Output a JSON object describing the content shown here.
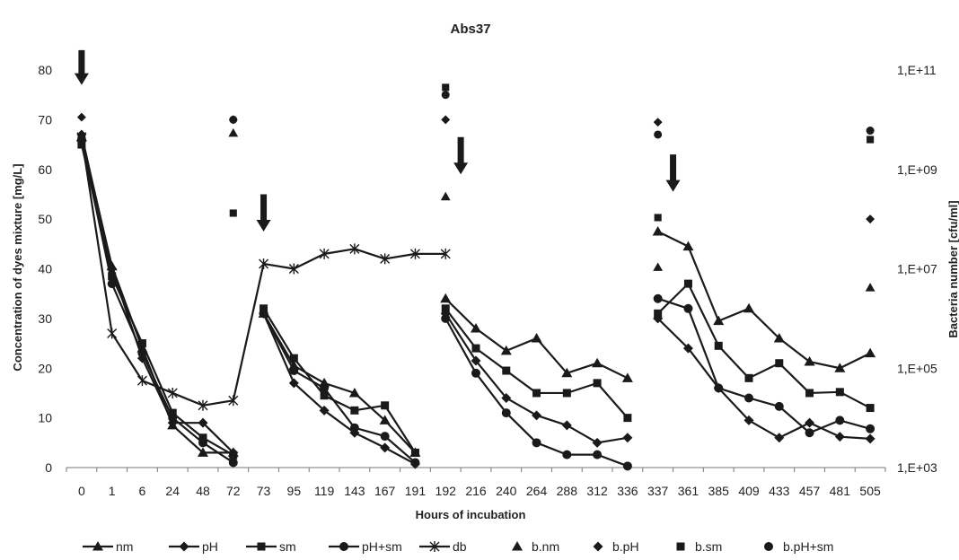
{
  "chart_data": {
    "type": "line",
    "title": "Abs37",
    "xlabel": "Hours of  incubation",
    "ylabel": "Concentration of dyes mixture [mg/L]",
    "y2label": "Bacteria number [cfu/ml]",
    "categories": [
      "0",
      "1",
      "6",
      "24",
      "48",
      "72",
      "73",
      "95",
      "119",
      "143",
      "167",
      "191",
      "192",
      "216",
      "240",
      "264",
      "288",
      "312",
      "336",
      "337",
      "361",
      "385",
      "409",
      "433",
      "457",
      "481",
      "505"
    ],
    "ylim": [
      0,
      80
    ],
    "yticks": [
      "0",
      "10",
      "20",
      "30",
      "40",
      "50",
      "60",
      "70",
      "80"
    ],
    "y2ticks": [
      "1,E+03",
      "1,E+05",
      "1,E+07",
      "1,E+09",
      "1,E+11"
    ],
    "y2lim_log10": [
      3,
      11
    ],
    "y2_scale": "log",
    "grid": false,
    "legend_position": "bottom",
    "series": [
      {
        "name": "nm",
        "marker": "triangle",
        "segments": [
          [
            [
              0,
              66.5
            ],
            [
              1,
              40.5
            ],
            [
              2,
              24
            ],
            [
              3,
              8.5
            ],
            [
              4,
              3
            ],
            [
              5,
              3
            ]
          ],
          [
            [
              6,
              31
            ],
            [
              7,
              20.5
            ],
            [
              8,
              17
            ],
            [
              9,
              15
            ],
            [
              10,
              9.5
            ],
            [
              11,
              3
            ]
          ],
          [
            [
              12,
              34
            ],
            [
              13,
              28
            ],
            [
              14,
              23.5
            ],
            [
              15,
              26
            ],
            [
              16,
              19
            ],
            [
              17,
              21
            ],
            [
              18,
              18
            ]
          ],
          [
            [
              19,
              47.5
            ],
            [
              20,
              44.5
            ],
            [
              21,
              29.5
            ],
            [
              22,
              32
            ],
            [
              23,
              26
            ],
            [
              24,
              21.3
            ],
            [
              25,
              20
            ],
            [
              26,
              23
            ]
          ]
        ]
      },
      {
        "name": "pH",
        "marker": "diamond",
        "segments": [
          [
            [
              0,
              67
            ],
            [
              1,
              40
            ],
            [
              2,
              22
            ],
            [
              3,
              9
            ],
            [
              4,
              9
            ],
            [
              5,
              3
            ]
          ],
          [
            [
              6,
              31
            ],
            [
              7,
              17
            ],
            [
              8,
              11.5
            ],
            [
              9,
              7
            ],
            [
              10,
              4
            ],
            [
              11,
              0.7
            ]
          ],
          [
            [
              12,
              31
            ],
            [
              13,
              21.5
            ],
            [
              14,
              14
            ],
            [
              15,
              10.5
            ],
            [
              16,
              8.5
            ],
            [
              17,
              5
            ],
            [
              18,
              6
            ]
          ],
          [
            [
              19,
              30
            ],
            [
              20,
              24
            ],
            [
              21,
              16
            ],
            [
              22,
              9.5
            ],
            [
              23,
              6
            ],
            [
              24,
              9
            ],
            [
              25,
              6.2
            ],
            [
              26,
              5.8
            ]
          ]
        ]
      },
      {
        "name": "sm",
        "marker": "square",
        "segments": [
          [
            [
              0,
              65
            ],
            [
              1,
              38.5
            ],
            [
              2,
              25
            ],
            [
              3,
              11
            ],
            [
              4,
              6
            ],
            [
              5,
              2.5
            ]
          ],
          [
            [
              6,
              32
            ],
            [
              7,
              22
            ],
            [
              8,
              14.5
            ],
            [
              9,
              11.5
            ],
            [
              10,
              12.5
            ],
            [
              11,
              3
            ]
          ],
          [
            [
              12,
              32
            ],
            [
              13,
              24
            ],
            [
              14,
              19.5
            ],
            [
              15,
              15
            ],
            [
              16,
              15
            ],
            [
              17,
              17
            ],
            [
              18,
              10
            ]
          ],
          [
            [
              19,
              31
            ],
            [
              20,
              37
            ],
            [
              21,
              24.5
            ],
            [
              22,
              18
            ],
            [
              23,
              21
            ],
            [
              24,
              15
            ],
            [
              25,
              15.2
            ],
            [
              26,
              12
            ]
          ]
        ]
      },
      {
        "name": "pH+sm",
        "marker": "circle",
        "segments": [
          [
            [
              0,
              66
            ],
            [
              1,
              37
            ],
            [
              2,
              23
            ],
            [
              3,
              10
            ],
            [
              4,
              5
            ],
            [
              5,
              1
            ]
          ],
          [
            [
              6,
              31
            ],
            [
              7,
              19.5
            ],
            [
              8,
              16
            ],
            [
              9,
              8
            ],
            [
              10,
              6.3
            ],
            [
              11,
              1
            ]
          ],
          [
            [
              12,
              30
            ],
            [
              13,
              19
            ],
            [
              14,
              11
            ],
            [
              15,
              5
            ],
            [
              16,
              2.6
            ],
            [
              17,
              2.6
            ],
            [
              18,
              0.3
            ]
          ],
          [
            [
              19,
              34
            ],
            [
              20,
              32
            ],
            [
              21,
              16
            ],
            [
              22,
              14
            ],
            [
              23,
              12.3
            ],
            [
              24,
              7
            ],
            [
              25,
              9.5
            ],
            [
              26,
              7.8
            ]
          ]
        ]
      },
      {
        "name": "db",
        "marker": "star",
        "segments": [
          [
            [
              0,
              66.5
            ],
            [
              1,
              27
            ],
            [
              2,
              17.5
            ],
            [
              3,
              15
            ],
            [
              4,
              12.5
            ],
            [
              5,
              13.5
            ],
            [
              6,
              41
            ],
            [
              7,
              40
            ],
            [
              8,
              43
            ],
            [
              9,
              44
            ],
            [
              10,
              42
            ],
            [
              11,
              43
            ],
            [
              12,
              43
            ]
          ]
        ]
      },
      {
        "name": "b.nm",
        "marker": "triangle",
        "points": [
          [
            5,
            67.3
          ],
          [
            12,
            54.5
          ],
          [
            19,
            40.3
          ],
          [
            26,
            36.2
          ]
        ]
      },
      {
        "name": "b.pH",
        "marker": "diamond",
        "points": [
          [
            0,
            70.5
          ],
          [
            5,
            70
          ],
          [
            12,
            70
          ],
          [
            19,
            69.5
          ],
          [
            26,
            50
          ]
        ]
      },
      {
        "name": "b.sm",
        "marker": "square",
        "points": [
          [
            0,
            65.5
          ],
          [
            5,
            51.2
          ],
          [
            12,
            76.5
          ],
          [
            19,
            50.3
          ],
          [
            26,
            66
          ]
        ]
      },
      {
        "name": "b.pH+sm",
        "marker": "circle",
        "points": [
          [
            0,
            66.5
          ],
          [
            5,
            70
          ],
          [
            12,
            75
          ],
          [
            19,
            67
          ],
          [
            26,
            67.8
          ]
        ]
      }
    ],
    "annotations": [
      {
        "type": "arrow-down",
        "x": 0,
        "y_top": 84,
        "y_tip": 77
      },
      {
        "type": "arrow-down",
        "x": 6,
        "y_top": 55,
        "y_tip": 47.5
      },
      {
        "type": "arrow-down",
        "x": 12.5,
        "y_top": 66.5,
        "y_tip": 59
      },
      {
        "type": "arrow-down",
        "x": 19.5,
        "y_top": 63,
        "y_tip": 55.5
      }
    ]
  }
}
